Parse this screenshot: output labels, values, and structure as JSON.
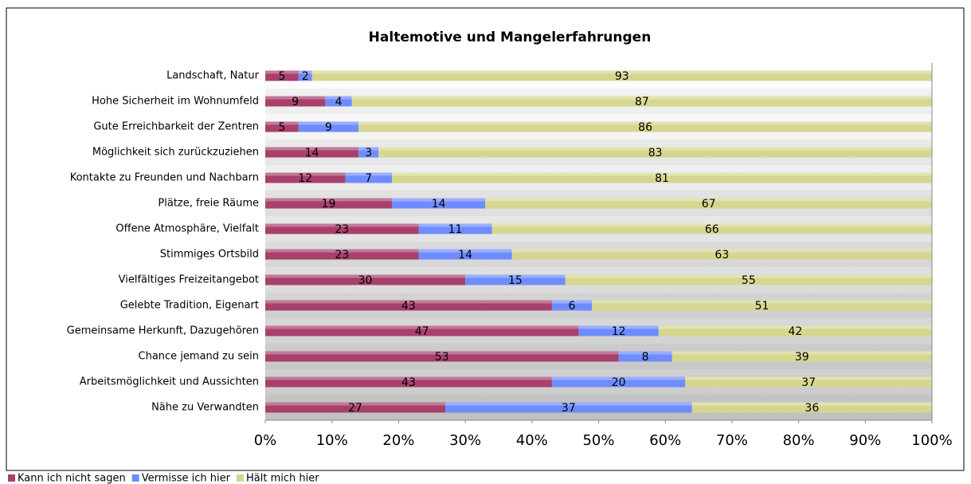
{
  "chart_data": {
    "type": "stacked-barh",
    "title": "Haltemotive und Mangelerfahrungen",
    "categories": [
      "Landschaft, Natur",
      "Hohe Sicherheit im Wohnumfeld",
      "Gute Erreichbarkeit der Zentren",
      "Möglichkeit sich zurückzuziehen",
      "Kontakte zu Freunden und Nachbarn",
      "Plätze, freie Räume",
      "Offene Atmosphäre, Vielfalt",
      "Stimmiges Ortsbild",
      "Vielfältiges Freizeitangebot",
      "Gelebte Tradition, Eigenart",
      "Gemeinsame Herkunft, Dazugehören",
      "Chance jemand zu sein",
      "Arbeitsmöglichkeit und Aussichten",
      "Nähe zu Verwandten"
    ],
    "series": [
      {
        "name": "Kann ich nicht sagen",
        "color": "#a8406c",
        "values": [
          5,
          9,
          5,
          14,
          12,
          19,
          23,
          23,
          30,
          43,
          47,
          53,
          43,
          27
        ]
      },
      {
        "name": "Vermisse ich hier",
        "color": "#6f8cff",
        "values": [
          2,
          4,
          9,
          3,
          7,
          14,
          11,
          14,
          15,
          6,
          12,
          8,
          20,
          37
        ]
      },
      {
        "name": "Hält mich hier",
        "color": "#d6d690",
        "values": [
          93,
          87,
          86,
          83,
          81,
          67,
          66,
          63,
          55,
          51,
          42,
          39,
          37,
          36
        ]
      }
    ],
    "xlim": [
      0,
      100
    ],
    "xticks": [
      {
        "value": 0,
        "label": "0%"
      },
      {
        "value": 10,
        "label": "10%"
      },
      {
        "value": 20,
        "label": "20%"
      },
      {
        "value": 30,
        "label": "30%"
      },
      {
        "value": 40,
        "label": "40%"
      },
      {
        "value": 50,
        "label": "50%"
      },
      {
        "value": 60,
        "label": "60%"
      },
      {
        "value": 70,
        "label": "70%"
      },
      {
        "value": 80,
        "label": "80%"
      },
      {
        "value": 90,
        "label": "90%"
      },
      {
        "value": 100,
        "label": "100%"
      }
    ],
    "legend": "bottom-left"
  }
}
